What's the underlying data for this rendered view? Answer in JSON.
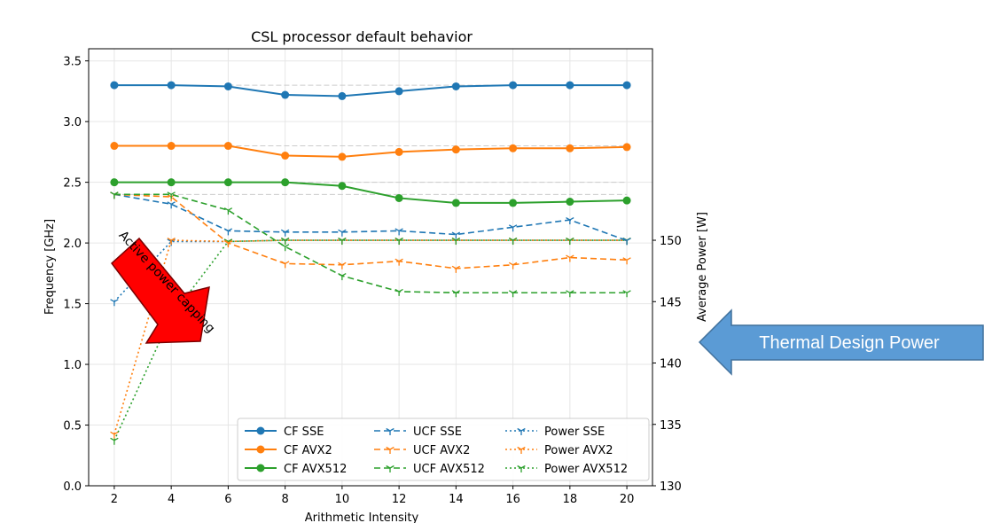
{
  "chart_data": {
    "type": "line",
    "title": "CSL processor default behavior",
    "xlabel": "Arithmetic Intensity",
    "ylabel": "Frequency [GHz]",
    "y2label": "Average Power [W]",
    "x": [
      2,
      4,
      6,
      8,
      10,
      12,
      14,
      16,
      18,
      20
    ],
    "xlim": [
      1.1,
      20.9
    ],
    "xticks": [
      2,
      4,
      6,
      8,
      10,
      12,
      14,
      16,
      18,
      20
    ],
    "ylim": [
      0.0,
      3.6
    ],
    "yticks": [
      "0.0",
      "0.5",
      "1.0",
      "1.5",
      "2.0",
      "2.5",
      "3.0",
      "3.5"
    ],
    "y2lim": [
      130,
      165.6
    ],
    "y2ticks": [
      130,
      135,
      140,
      145,
      150
    ],
    "grid": true,
    "legend": "lower-right",
    "reference_lines": [
      {
        "x_from": 6,
        "x_to": 20,
        "y": 3.3,
        "color": "#cccccc"
      },
      {
        "x_from": 6,
        "x_to": 20,
        "y": 2.8,
        "color": "#cccccc"
      },
      {
        "x_from": 6,
        "x_to": 20,
        "y": 2.5,
        "color": "#cccccc"
      },
      {
        "x_from": 2,
        "x_to": 20,
        "y": 2.4,
        "color": "#cccccc"
      }
    ],
    "series": [
      {
        "name": "CF SSE",
        "axis": "left",
        "style": "solid",
        "marker": "circle",
        "color": "#1f77b4",
        "values": [
          3.3,
          3.3,
          3.29,
          3.22,
          3.21,
          3.25,
          3.29,
          3.3,
          3.3,
          3.3
        ]
      },
      {
        "name": "CF AVX2",
        "axis": "left",
        "style": "solid",
        "marker": "circle",
        "color": "#ff7f0e",
        "values": [
          2.8,
          2.8,
          2.8,
          2.72,
          2.71,
          2.75,
          2.77,
          2.78,
          2.78,
          2.79
        ]
      },
      {
        "name": "CF AVX512",
        "axis": "left",
        "style": "solid",
        "marker": "circle",
        "color": "#2ca02c",
        "values": [
          2.5,
          2.5,
          2.5,
          2.5,
          2.47,
          2.37,
          2.33,
          2.33,
          2.34,
          2.35
        ]
      },
      {
        "name": "UCF SSE",
        "axis": "left",
        "style": "dashed",
        "marker": "tri",
        "color": "#1f77b4",
        "values": [
          2.4,
          2.32,
          2.1,
          2.09,
          2.09,
          2.1,
          2.07,
          2.13,
          2.19,
          2.02
        ]
      },
      {
        "name": "UCF AVX2",
        "axis": "left",
        "style": "dashed",
        "marker": "tri",
        "color": "#ff7f0e",
        "values": [
          2.4,
          2.38,
          2.0,
          1.83,
          1.82,
          1.85,
          1.79,
          1.82,
          1.88,
          1.86
        ]
      },
      {
        "name": "UCF AVX512",
        "axis": "left",
        "style": "dashed",
        "marker": "tri",
        "color": "#2ca02c",
        "values": [
          2.4,
          2.4,
          2.27,
          1.97,
          1.73,
          1.6,
          1.59,
          1.59,
          1.59,
          1.59
        ]
      },
      {
        "name": "Power SSE",
        "axis": "right",
        "style": "dotted",
        "marker": "tri",
        "color": "#1f77b4",
        "values": [
          145.0,
          149.9,
          149.9,
          150.0,
          150.0,
          150.0,
          150.0,
          150.0,
          150.0,
          150.0
        ]
      },
      {
        "name": "Power AVX2",
        "axis": "right",
        "style": "dotted",
        "marker": "tri",
        "color": "#ff7f0e",
        "values": [
          134.2,
          150.0,
          149.9,
          150.0,
          150.0,
          150.0,
          150.0,
          150.0,
          150.0,
          150.0
        ]
      },
      {
        "name": "Power AVX512",
        "axis": "right",
        "style": "dotted",
        "marker": "tri",
        "color": "#2ca02c",
        "values": [
          133.7,
          143.8,
          149.9,
          150.0,
          150.0,
          150.0,
          150.0,
          150.0,
          150.0,
          150.0
        ]
      }
    ],
    "annotations": {
      "power_capping_arrow": {
        "text": "Active power capping",
        "color": "#ff0000"
      },
      "tdp_arrow": {
        "text": "Thermal Design Power",
        "color": "#5b9bd5"
      }
    }
  }
}
